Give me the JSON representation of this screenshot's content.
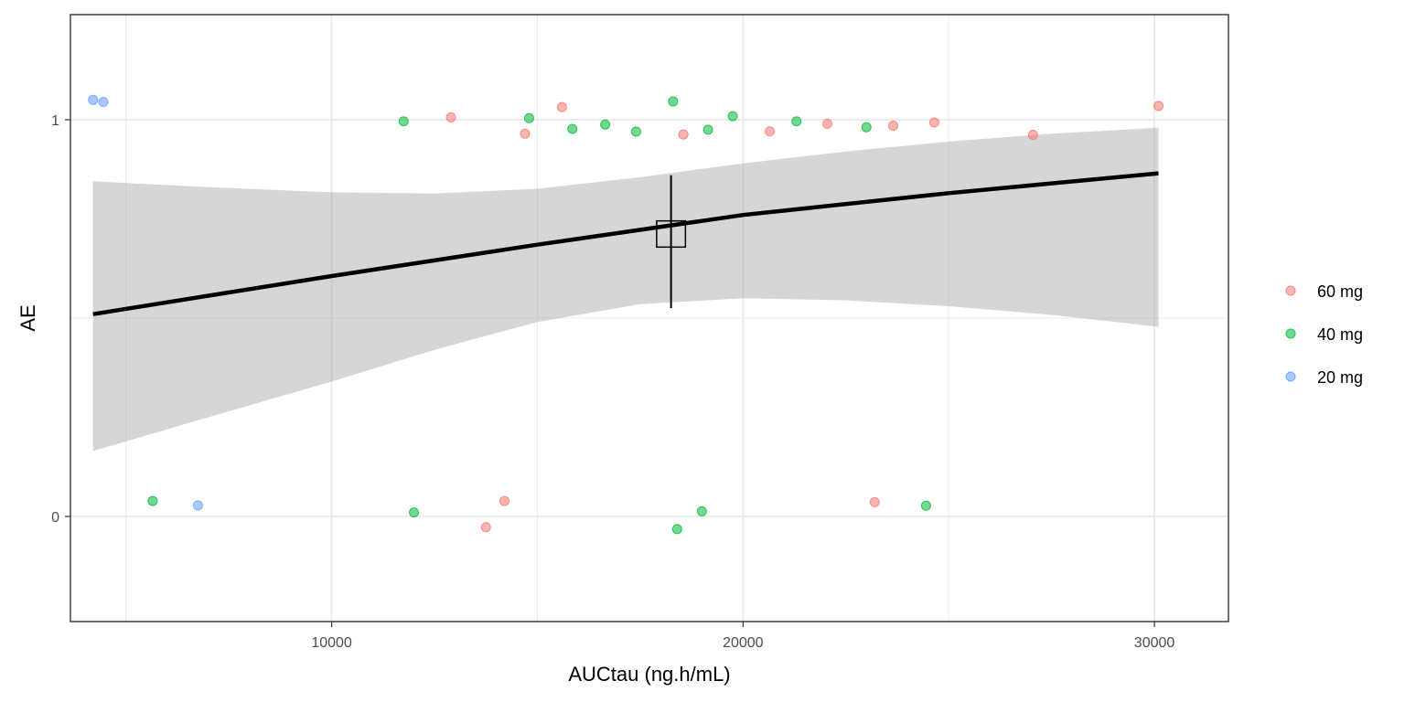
{
  "chart_data": {
    "type": "scatter",
    "title": "",
    "xlabel": "AUCtau (ng.h/mL)",
    "ylabel": "AE",
    "xlim": [
      3650,
      31800
    ],
    "ylim": [
      -0.265,
      1.265
    ],
    "x_ticks": [
      10000,
      20000,
      30000
    ],
    "x_tick_labels": [
      "10000",
      "20000",
      "30000"
    ],
    "y_ticks": [
      0,
      1
    ],
    "y_tick_labels": [
      "0",
      "1"
    ],
    "x_minor_ticks": [
      5000,
      15000,
      25000
    ],
    "y_minor_ticks": [
      0.5
    ],
    "grid": true,
    "legend_position": "right",
    "series": [
      {
        "name": "60 mg",
        "color": "#F8766D",
        "points": [
          {
            "x": 12900,
            "y": 1.006
          },
          {
            "x": 14700,
            "y": 0.965
          },
          {
            "x": 15600,
            "y": 1.032
          },
          {
            "x": 18550,
            "y": 0.963
          },
          {
            "x": 20650,
            "y": 0.971
          },
          {
            "x": 22050,
            "y": 0.99
          },
          {
            "x": 23650,
            "y": 0.985
          },
          {
            "x": 24650,
            "y": 0.993
          },
          {
            "x": 27050,
            "y": 0.962
          },
          {
            "x": 30100,
            "y": 1.035
          },
          {
            "x": 13750,
            "y": -0.027
          },
          {
            "x": 14200,
            "y": 0.039
          },
          {
            "x": 23200,
            "y": 0.036
          }
        ]
      },
      {
        "name": "40 mg",
        "color": "#00BA38",
        "points": [
          {
            "x": 11750,
            "y": 0.996
          },
          {
            "x": 14800,
            "y": 1.004
          },
          {
            "x": 15850,
            "y": 0.977
          },
          {
            "x": 16650,
            "y": 0.988
          },
          {
            "x": 17400,
            "y": 0.97
          },
          {
            "x": 18300,
            "y": 1.046
          },
          {
            "x": 19150,
            "y": 0.975
          },
          {
            "x": 19750,
            "y": 1.009
          },
          {
            "x": 21300,
            "y": 0.996
          },
          {
            "x": 23000,
            "y": 0.981
          },
          {
            "x": 5650,
            "y": 0.039
          },
          {
            "x": 12000,
            "y": 0.01
          },
          {
            "x": 18400,
            "y": -0.032
          },
          {
            "x": 19000,
            "y": 0.013
          },
          {
            "x": 24450,
            "y": 0.027
          }
        ]
      },
      {
        "name": "20 mg",
        "color": "#619CFF",
        "points": [
          {
            "x": 4200,
            "y": 1.05
          },
          {
            "x": 4450,
            "y": 1.045
          },
          {
            "x": 6750,
            "y": 0.028
          }
        ]
      }
    ],
    "fit_line": {
      "color": "#000000",
      "points": [
        {
          "x": 4200,
          "y": 0.51
        },
        {
          "x": 10000,
          "y": 0.606
        },
        {
          "x": 15000,
          "y": 0.685
        },
        {
          "x": 20000,
          "y": 0.76
        },
        {
          "x": 25000,
          "y": 0.815
        },
        {
          "x": 30100,
          "y": 0.865
        }
      ]
    },
    "confidence_band": {
      "color": "#999999",
      "upper": [
        {
          "x": 4200,
          "y": 0.845
        },
        {
          "x": 7000,
          "y": 0.83
        },
        {
          "x": 10000,
          "y": 0.817
        },
        {
          "x": 12500,
          "y": 0.814
        },
        {
          "x": 15000,
          "y": 0.826
        },
        {
          "x": 17500,
          "y": 0.855
        },
        {
          "x": 20000,
          "y": 0.89
        },
        {
          "x": 22500,
          "y": 0.92
        },
        {
          "x": 25000,
          "y": 0.945
        },
        {
          "x": 27500,
          "y": 0.965
        },
        {
          "x": 30100,
          "y": 0.98
        }
      ],
      "lower": [
        {
          "x": 4200,
          "y": 0.165
        },
        {
          "x": 7000,
          "y": 0.25
        },
        {
          "x": 10000,
          "y": 0.34
        },
        {
          "x": 12500,
          "y": 0.42
        },
        {
          "x": 15000,
          "y": 0.49
        },
        {
          "x": 17500,
          "y": 0.535
        },
        {
          "x": 20000,
          "y": 0.55
        },
        {
          "x": 22500,
          "y": 0.545
        },
        {
          "x": 25000,
          "y": 0.53
        },
        {
          "x": 27500,
          "y": 0.508
        },
        {
          "x": 30100,
          "y": 0.478
        }
      ]
    },
    "summary_point": {
      "x": 18250,
      "y": 0.712,
      "error_low": 0.525,
      "error_high": 0.86,
      "x_half_width": 350,
      "y_half_height": 0.033
    }
  }
}
